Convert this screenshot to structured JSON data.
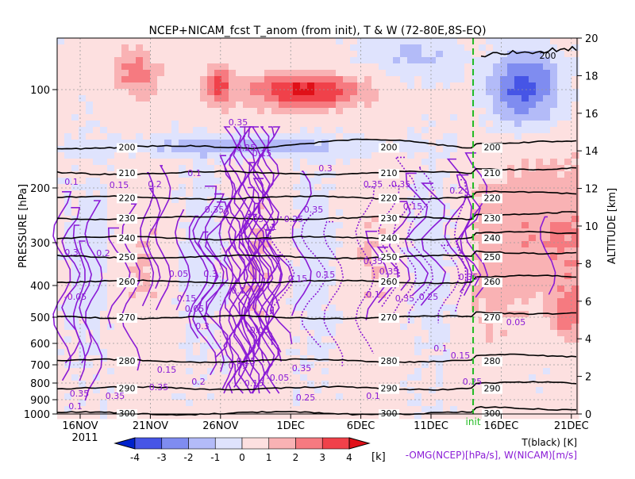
{
  "chart_data": {
    "type": "heatmap",
    "title": "NCEP+NICAM_fcst T_anom (from init), T & W  (72-80E,8S-EQ)",
    "ylabel_left": "PRESSURE [hPa]",
    "ylabel_right": "ALTITUDE [km]",
    "year_label": "2011",
    "init_label": "init",
    "init_date": "14DEC",
    "x_ticks": [
      "16NOV",
      "21NOV",
      "26NOV",
      "1DEC",
      "6DEC",
      "11DEC",
      "16DEC",
      "21DEC"
    ],
    "pressure_ticks": [
      100,
      200,
      300,
      400,
      500,
      600,
      700,
      800,
      900,
      1000
    ],
    "altitude_ticks": [
      0,
      2,
      4,
      6,
      8,
      10,
      12,
      14,
      16,
      18,
      20
    ],
    "colorbar": {
      "ticks": [
        -4,
        -3,
        -2,
        -1,
        0,
        1,
        2,
        3,
        4
      ],
      "unit": "[k]",
      "colors": [
        "#0022cc",
        "#4655e6",
        "#7f8cf0",
        "#b3bbf8",
        "#dfe3fd",
        "#fde0e0",
        "#f9b2b4",
        "#f67a80",
        "#f0414a",
        "#e01018"
      ]
    },
    "legend_temp": "T(black) [K]",
    "legend_wind": "-OMG(NCEP)[hPa/s], W(NICAM)[m/s]",
    "temperature_contours": [
      {
        "label": "200",
        "p": 150
      },
      {
        "label": "210",
        "p": 180
      },
      {
        "label": "220",
        "p": 215
      },
      {
        "label": "230",
        "p": 250
      },
      {
        "label": "240",
        "p": 290
      },
      {
        "label": "250",
        "p": 330
      },
      {
        "label": "260",
        "p": 390
      },
      {
        "label": "270",
        "p": 500
      },
      {
        "label": "280",
        "p": 680
      },
      {
        "label": "290",
        "p": 830
      },
      {
        "label": "300",
        "p": 995
      }
    ],
    "w_contour_labels": [
      "0.05",
      "0.1",
      "0.15",
      "0.2",
      "0.25",
      "0.3",
      "0.35",
      "-0.05"
    ],
    "colors": {
      "temperature": "#000000",
      "vertical_velocity": "#8a1bd6",
      "init_line": "#22bb22"
    }
  }
}
